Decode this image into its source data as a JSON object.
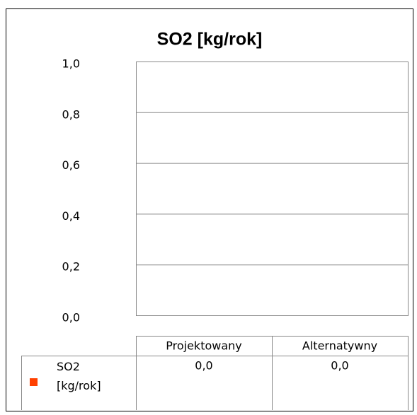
{
  "chart_data": {
    "type": "bar",
    "title": "SO2 [kg/rok]",
    "categories": [
      "Projektowany",
      "Alternatywny"
    ],
    "series": [
      {
        "name": "SO2 [kg/rok]",
        "color": "#ff4000",
        "values": [
          0,
          0
        ],
        "value_labels": [
          "0,0",
          "0,0"
        ]
      }
    ],
    "ylim": [
      0,
      1
    ],
    "yticks": [
      {
        "value": 0,
        "label": "0,0"
      },
      {
        "value": 0.2,
        "label": "0,2"
      },
      {
        "value": 0.4,
        "label": "0,4"
      },
      {
        "value": 0.6,
        "label": "0,6"
      },
      {
        "value": 0.8,
        "label": "0,8"
      },
      {
        "value": 1,
        "label": "1,0"
      }
    ],
    "grid": true
  }
}
